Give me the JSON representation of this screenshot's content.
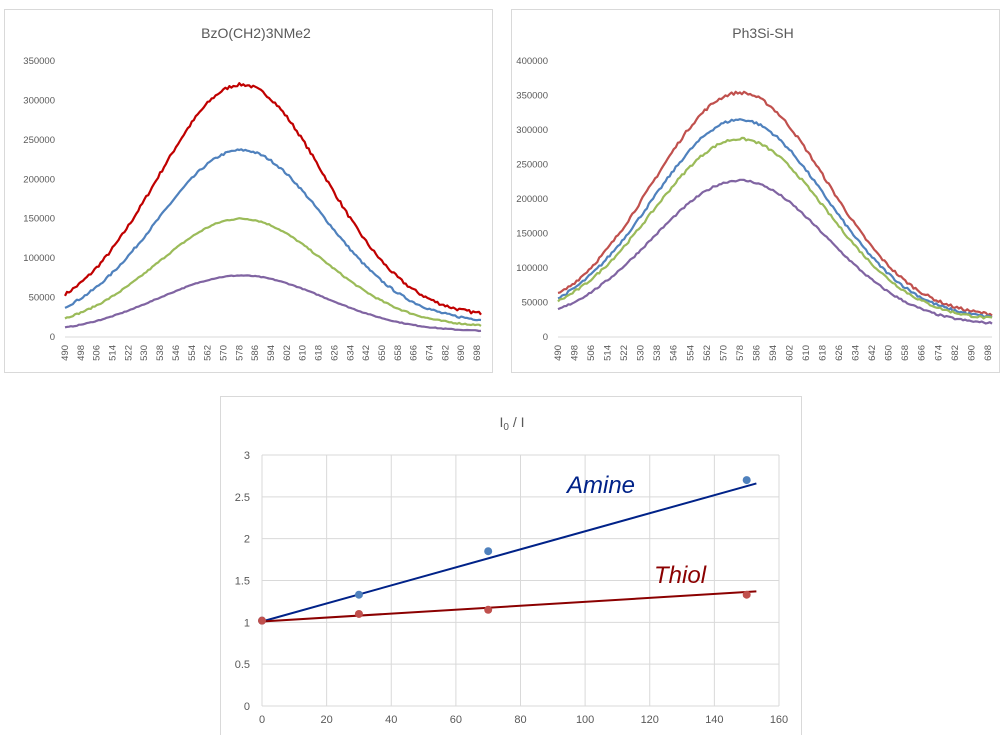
{
  "chart_data": [
    {
      "type": "line",
      "title": "BzO(CH2)3NMe2",
      "xlabel": "",
      "ylabel": "",
      "x_ticks": [
        "490",
        "498",
        "506",
        "514",
        "522",
        "530",
        "538",
        "546",
        "554",
        "562",
        "570",
        "578",
        "586",
        "594",
        "602",
        "610",
        "618",
        "626",
        "634",
        "642",
        "650",
        "658",
        "666",
        "674",
        "682",
        "690",
        "698"
      ],
      "xlim": [
        490,
        700
      ],
      "ylim": [
        0,
        350000
      ],
      "y_ticks": [
        0,
        50000,
        100000,
        150000,
        200000,
        250000,
        300000,
        350000
      ],
      "grid": false,
      "legend": "none",
      "series": [
        {
          "color": "#c00000",
          "baseline": 54000,
          "peak": 320000,
          "end": 30000,
          "peak_x": 579
        },
        {
          "color": "#4f81bd",
          "baseline": 38000,
          "peak": 237000,
          "end": 22000,
          "peak_x": 579
        },
        {
          "color": "#9bbb59",
          "baseline": 24000,
          "peak": 150000,
          "end": 15000,
          "peak_x": 579
        },
        {
          "color": "#8064a2",
          "baseline": 12000,
          "peak": 78000,
          "end": 8000,
          "peak_x": 579
        }
      ]
    },
    {
      "type": "line",
      "title": "Ph3Si-SH",
      "xlabel": "",
      "ylabel": "",
      "x_ticks": [
        "490",
        "498",
        "506",
        "514",
        "522",
        "530",
        "538",
        "546",
        "554",
        "562",
        "570",
        "578",
        "586",
        "594",
        "602",
        "610",
        "618",
        "626",
        "634",
        "642",
        "650",
        "658",
        "666",
        "674",
        "682",
        "690",
        "698"
      ],
      "xlim": [
        490,
        700
      ],
      "ylim": [
        0,
        400000
      ],
      "y_ticks": [
        0,
        50000,
        100000,
        150000,
        200000,
        250000,
        300000,
        350000,
        400000
      ],
      "grid": false,
      "legend": "none",
      "series": [
        {
          "color": "#c0504d",
          "baseline": 62000,
          "peak": 354000,
          "end": 33000,
          "peak_x": 578
        },
        {
          "color": "#4f81bd",
          "baseline": 56000,
          "peak": 315000,
          "end": 29000,
          "peak_x": 578
        },
        {
          "color": "#9bbb59",
          "baseline": 52000,
          "peak": 287000,
          "end": 27000,
          "peak_x": 578
        },
        {
          "color": "#8064a2",
          "baseline": 40000,
          "peak": 227000,
          "end": 20000,
          "peak_x": 578
        }
      ]
    },
    {
      "type": "scatter",
      "title": "I0 / I",
      "xlabel": "",
      "ylabel": "",
      "xlim": [
        0,
        160
      ],
      "ylim": [
        0,
        3
      ],
      "x_ticks": [
        0,
        20,
        40,
        60,
        80,
        100,
        120,
        140,
        160
      ],
      "y_ticks": [
        0,
        0.5,
        1,
        1.5,
        2,
        2.5,
        3
      ],
      "grid": true,
      "legend": "none",
      "series": [
        {
          "color": "#4f81bd",
          "line_color": "#002288",
          "label": "Amine",
          "x": [
            0,
            30,
            70,
            150
          ],
          "y": [
            1.02,
            1.33,
            1.85,
            2.7
          ],
          "trend": [
            [
              0,
              1.01
            ],
            [
              153,
              2.66
            ]
          ]
        },
        {
          "color": "#c0504d",
          "line_color": "#8b0000",
          "label": "Thiol",
          "x": [
            0,
            30,
            70,
            150
          ],
          "y": [
            1.02,
            1.1,
            1.15,
            1.33
          ],
          "trend": [
            [
              0,
              1.01
            ],
            [
              153,
              1.37
            ]
          ]
        }
      ],
      "annotations": [
        "Amine",
        "Thiol"
      ]
    }
  ]
}
